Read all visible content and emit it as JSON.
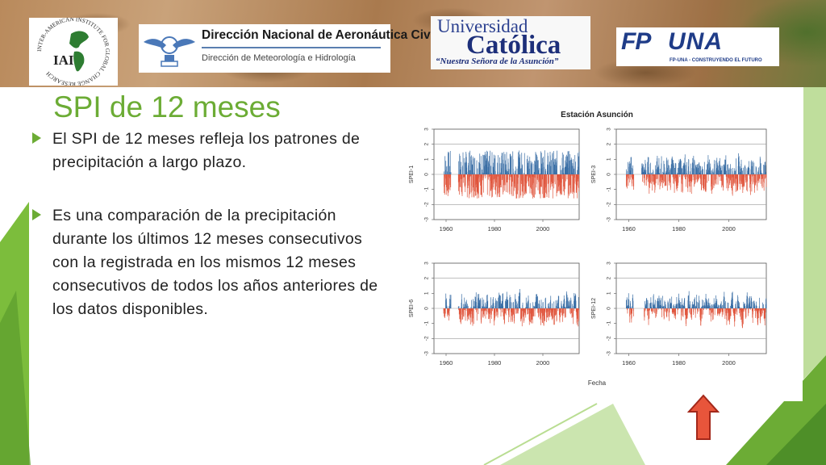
{
  "logos": {
    "iai": {
      "name": "IAI",
      "arc_text": "INTER-AMERICAN INSTITUTE FOR GLOBAL CHANGE RESEARCH"
    },
    "dinac": {
      "title": "Dirección Nacional de Aeronáutica Civil",
      "subtitle": "Dirección de Meteorología e Hidrología"
    },
    "uc": {
      "line1": "Universidad",
      "line2": "Católica",
      "motto": "“Nuestra Señora de la Asunción”"
    },
    "fpuna": {
      "part1": "FP",
      "part2": "UNA",
      "tagline": "FP-UNA - CONSTRUYENDO EL FUTURO"
    }
  },
  "slide": {
    "title": "SPI de 12 meses",
    "bullets": [
      "El SPI de 12 meses refleja los patrones de precipitación a largo plazo.",
      "Es una comparación de la precipitación durante los últimos 12 meses consecutivos con la registrada en los mismos 12 meses consecutivos de todos los años anteriores de los datos disponibles."
    ]
  },
  "colors": {
    "accent": "#6cac35",
    "positive": "#3a6ea5",
    "negative": "#e0553c"
  },
  "chart_data": [
    {
      "type": "bar",
      "ylabel": "SPEI-1",
      "ylim": [
        -3,
        3
      ],
      "xlim": [
        1955,
        2015
      ],
      "xticks": [
        1960,
        1980,
        2000
      ],
      "yticks": [
        -3,
        -2,
        -1,
        0,
        1,
        2,
        3
      ],
      "start_year": 1959,
      "gap": [
        1962,
        1965
      ],
      "amplitude": 1.6,
      "note": "monthly index, values alternate frequently between positive and negative"
    },
    {
      "type": "bar",
      "ylabel": "SPEI-3",
      "ylim": [
        -3,
        3
      ],
      "xlim": [
        1955,
        2015
      ],
      "xticks": [
        1960,
        1980,
        2000
      ],
      "yticks": [
        -3,
        -2,
        -1,
        0,
        1,
        2,
        3
      ],
      "start_year": 1959,
      "gap": [
        1962,
        1965
      ],
      "amplitude": 1.6
    },
    {
      "type": "bar",
      "ylabel": "SPEI-6",
      "ylim": [
        -3,
        3
      ],
      "xlim": [
        1955,
        2015
      ],
      "xticks": [
        1960,
        1980,
        2000
      ],
      "yticks": [
        -3,
        -2,
        -1,
        0,
        1,
        2,
        3
      ],
      "start_year": 1959,
      "gap": [
        1962,
        1965
      ],
      "amplitude": 1.7
    },
    {
      "type": "bar",
      "ylabel": "SPEI-12",
      "ylim": [
        -3,
        3
      ],
      "xlim": [
        1955,
        2015
      ],
      "xticks": [
        1960,
        1980,
        2000
      ],
      "yticks": [
        -3,
        -2,
        -1,
        0,
        1,
        2,
        3
      ],
      "start_year": 1959,
      "gap": [
        1962,
        1966
      ],
      "amplitude": 1.8
    }
  ],
  "chart_labels": {
    "title": "Estación Asunción",
    "xlabel": "Fecha"
  }
}
